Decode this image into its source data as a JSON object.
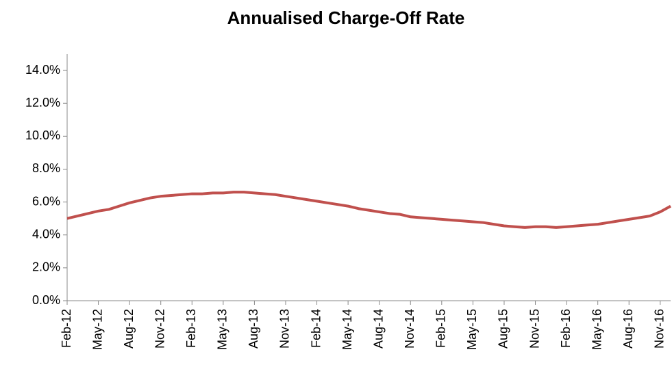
{
  "chart_data": {
    "type": "line",
    "title": "Annualised Charge-Off Rate",
    "categories": [
      "Feb-12",
      null,
      null,
      "May-12",
      null,
      null,
      "Aug-12",
      null,
      null,
      "Nov-12",
      null,
      null,
      "Feb-13",
      null,
      null,
      "May-13",
      null,
      null,
      "Aug-13",
      null,
      null,
      "Nov-13",
      null,
      null,
      "Feb-14",
      null,
      null,
      "May-14",
      null,
      null,
      "Aug-14",
      null,
      null,
      "Nov-14",
      null,
      null,
      "Feb-15",
      null,
      null,
      "May-15",
      null,
      null,
      "Aug-15",
      null,
      null,
      "Nov-15",
      null,
      null,
      "Feb-16",
      null,
      null,
      "May-16",
      null,
      null,
      "Aug-16",
      null,
      null,
      "Nov-16",
      null
    ],
    "series": [
      {
        "name": "Annualised Charge-Off Rate",
        "color": "#c0504d",
        "values": [
          5.0,
          5.15,
          5.3,
          5.45,
          5.55,
          5.75,
          5.95,
          6.1,
          6.25,
          6.35,
          6.4,
          6.45,
          6.5,
          6.5,
          6.55,
          6.55,
          6.6,
          6.6,
          6.55,
          6.5,
          6.45,
          6.35,
          6.25,
          6.15,
          6.05,
          5.95,
          5.85,
          5.75,
          5.6,
          5.5,
          5.4,
          5.3,
          5.25,
          5.1,
          5.05,
          5.0,
          4.95,
          4.9,
          4.85,
          4.8,
          4.75,
          4.65,
          4.55,
          4.5,
          4.45,
          4.5,
          4.5,
          4.45,
          4.5,
          4.55,
          4.6,
          4.65,
          4.75,
          4.85,
          4.95,
          5.05,
          5.15,
          5.4,
          5.75
        ]
      }
    ],
    "ylim": [
      0,
      15
    ],
    "yticks": [
      {
        "value": 0,
        "label": "0.0%"
      },
      {
        "value": 2,
        "label": "2.0%"
      },
      {
        "value": 4,
        "label": "4.0%"
      },
      {
        "value": 6,
        "label": "6.0%"
      },
      {
        "value": 8,
        "label": "8.0%"
      },
      {
        "value": 10,
        "label": "10.0%"
      },
      {
        "value": 12,
        "label": "12.0%"
      },
      {
        "value": 14,
        "label": "14.0%"
      }
    ],
    "grid": false
  }
}
